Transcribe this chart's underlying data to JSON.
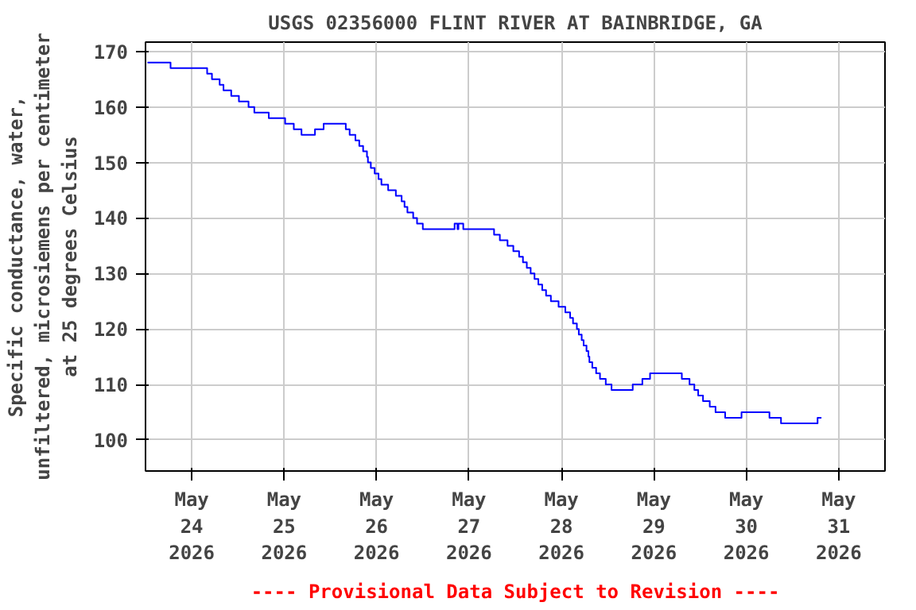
{
  "chart_data": {
    "type": "step",
    "title": "USGS 02356000 FLINT RIVER AT BAINBRIDGE, GA",
    "ylabel": "Specific conductance, water,\nunfiltered, microsiemens per centimeter\nat 25 degrees Celsius",
    "annotations": [
      "---- Provisional Data Subject to Revision ----"
    ],
    "x": [
      "2026-05-23T12:30",
      "2026-05-23T18:30",
      "2026-05-24T04:00",
      "2026-05-24T05:15",
      "2026-05-24T07:15",
      "2026-05-24T08:15",
      "2026-05-24T10:15",
      "2026-05-24T12:15",
      "2026-05-24T14:45",
      "2026-05-24T16:15",
      "2026-05-24T20:00",
      "2026-05-25T00:15",
      "2026-05-25T02:30",
      "2026-05-25T04:30",
      "2026-05-25T08:00",
      "2026-05-25T10:15",
      "2026-05-25T16:00",
      "2026-05-25T17:00",
      "2026-05-25T18:30",
      "2026-05-25T19:30",
      "2026-05-25T20:30",
      "2026-05-25T21:30",
      "2026-05-25T21:45",
      "2026-05-25T22:30",
      "2026-05-25T23:30",
      "2026-05-26T00:30",
      "2026-05-26T01:15",
      "2026-05-26T03:00",
      "2026-05-26T05:00",
      "2026-05-26T06:30",
      "2026-05-26T07:15",
      "2026-05-26T08:00",
      "2026-05-26T09:30",
      "2026-05-26T10:30",
      "2026-05-26T12:00",
      "2026-05-26T20:15",
      "2026-05-26T21:00",
      "2026-05-26T21:15",
      "2026-05-26T22:30",
      "2026-05-27T06:30",
      "2026-05-27T08:00",
      "2026-05-27T10:00",
      "2026-05-27T11:30",
      "2026-05-27T13:00",
      "2026-05-27T14:00",
      "2026-05-27T15:00",
      "2026-05-27T16:00",
      "2026-05-27T17:00",
      "2026-05-27T18:00",
      "2026-05-27T19:00",
      "2026-05-27T20:00",
      "2026-05-27T21:15",
      "2026-05-27T23:15",
      "2026-05-28T01:00",
      "2026-05-28T02:15",
      "2026-05-28T03:00",
      "2026-05-28T04:00",
      "2026-05-28T04:30",
      "2026-05-28T05:15",
      "2026-05-28T05:45",
      "2026-05-28T06:30",
      "2026-05-28T07:00",
      "2026-05-28T07:15",
      "2026-05-28T08:00",
      "2026-05-28T09:00",
      "2026-05-28T10:00",
      "2026-05-28T11:30",
      "2026-05-28T13:00",
      "2026-05-28T18:30",
      "2026-05-28T21:00",
      "2026-05-28T23:00",
      "2026-05-29T07:15",
      "2026-05-29T09:15",
      "2026-05-29T10:30",
      "2026-05-29T11:30",
      "2026-05-29T12:45",
      "2026-05-29T14:30",
      "2026-05-29T16:00",
      "2026-05-29T18:30",
      "2026-05-29T22:45",
      "2026-05-30T06:00",
      "2026-05-30T09:00",
      "2026-05-30T18:30",
      "2026-05-30T19:30"
    ],
    "series": [
      {
        "color": "#0000ff",
        "values": [
          168,
          167,
          166,
          165,
          164,
          163,
          162,
          161,
          160,
          159,
          158,
          157,
          156,
          155,
          156,
          157,
          156,
          155,
          154,
          153,
          152,
          151,
          150,
          149,
          148,
          147,
          146,
          145,
          144,
          143,
          142,
          141,
          140,
          139,
          138,
          139,
          138,
          139,
          138,
          137,
          136,
          135,
          134,
          133,
          132,
          131,
          130,
          129,
          128,
          127,
          126,
          125,
          124,
          123,
          122,
          121,
          120,
          119,
          118,
          117,
          116,
          115,
          114,
          113,
          112,
          111,
          110,
          109,
          110,
          111,
          112,
          111,
          110,
          109,
          108,
          107,
          106,
          105,
          104,
          105,
          104,
          103,
          104,
          104
        ]
      }
    ],
    "xlim": [
      "2026-05-23T12:00",
      "2026-05-31T12:00"
    ],
    "xticks": [
      {
        "value": "2026-05-24",
        "label": "May\n24\n2026"
      },
      {
        "value": "2026-05-25",
        "label": "May\n25\n2026"
      },
      {
        "value": "2026-05-26",
        "label": "May\n26\n2026"
      },
      {
        "value": "2026-05-27",
        "label": "May\n27\n2026"
      },
      {
        "value": "2026-05-28",
        "label": "May\n28\n2026"
      },
      {
        "value": "2026-05-29",
        "label": "May\n29\n2026"
      },
      {
        "value": "2026-05-30",
        "label": "May\n30\n2026"
      },
      {
        "value": "2026-05-31",
        "label": "May\n31\n2026"
      }
    ],
    "ylim": [
      94.4,
      171.7
    ],
    "yticks": [
      100,
      110,
      120,
      130,
      140,
      150,
      160,
      170
    ],
    "grid": true
  }
}
